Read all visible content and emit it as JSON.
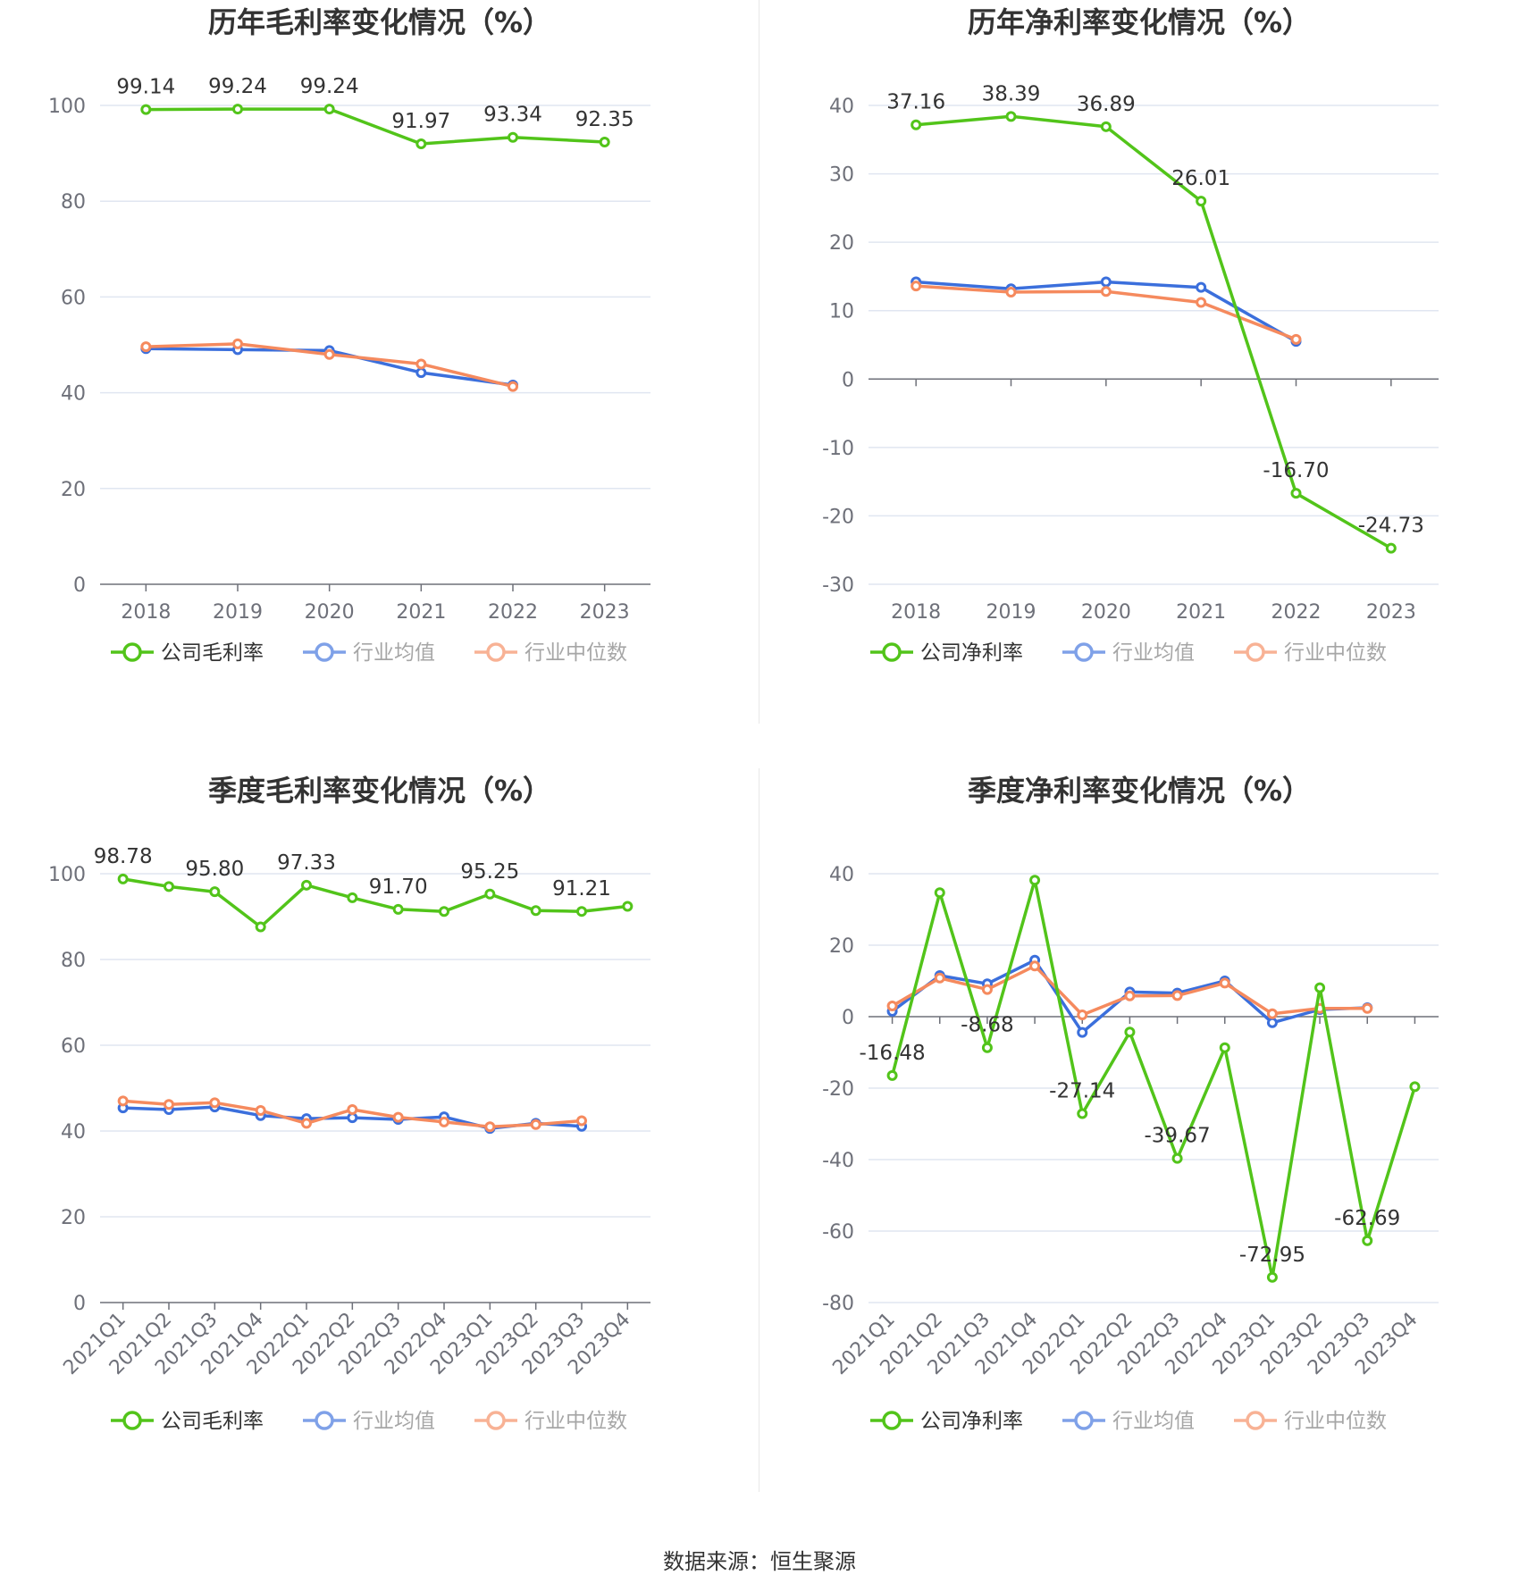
{
  "source": "数据来源：恒生聚源",
  "colors": {
    "company": "#52c41a",
    "avg": "#3b6fdc",
    "median": "#f58a5e",
    "grid": "#e0e6f1",
    "axis": "#6e7079"
  },
  "chart_data": [
    {
      "id": "annual-gross",
      "type": "line",
      "title": "历年毛利率变化情况（%）",
      "categories": [
        "2018",
        "2019",
        "2020",
        "2021",
        "2022",
        "2023"
      ],
      "ylim": [
        0,
        100
      ],
      "yticks": [
        0,
        20,
        40,
        60,
        80,
        100
      ],
      "grid": true,
      "legend": "bottom",
      "series": [
        {
          "name": "公司毛利率",
          "key": "company",
          "values": [
            99.14,
            99.24,
            99.24,
            91.97,
            93.34,
            92.35
          ],
          "labels": [
            "99.14",
            "99.24",
            "99.24",
            "91.97",
            "93.34",
            "92.35"
          ]
        },
        {
          "name": "行业均值",
          "key": "avg",
          "values": [
            49.2,
            49.0,
            48.8,
            44.2,
            41.6,
            null
          ]
        },
        {
          "name": "行业中位数",
          "key": "median",
          "values": [
            49.6,
            50.2,
            48.0,
            46.0,
            41.3,
            null
          ]
        }
      ]
    },
    {
      "id": "annual-net",
      "type": "line",
      "title": "历年净利率变化情况（%）",
      "categories": [
        "2018",
        "2019",
        "2020",
        "2021",
        "2022",
        "2023"
      ],
      "ylim": [
        -30,
        40
      ],
      "yticks": [
        -30,
        -20,
        -10,
        0,
        10,
        20,
        30,
        40
      ],
      "grid": true,
      "legend": "bottom",
      "series": [
        {
          "name": "公司净利率",
          "key": "company",
          "values": [
            37.16,
            38.39,
            36.89,
            26.01,
            -16.7,
            -24.73
          ],
          "labels": [
            "37.16",
            "38.39",
            "36.89",
            "26.01",
            "-16.70",
            "-24.73"
          ]
        },
        {
          "name": "行业均值",
          "key": "avg",
          "values": [
            14.2,
            13.2,
            14.2,
            13.4,
            5.5,
            null
          ]
        },
        {
          "name": "行业中位数",
          "key": "median",
          "values": [
            13.6,
            12.7,
            12.8,
            11.2,
            5.8,
            null
          ]
        }
      ]
    },
    {
      "id": "quarterly-gross",
      "type": "line",
      "title": "季度毛利率变化情况（%）",
      "categories": [
        "2021Q1",
        "2021Q2",
        "2021Q3",
        "2021Q4",
        "2022Q1",
        "2022Q2",
        "2022Q3",
        "2022Q4",
        "2023Q1",
        "2023Q2",
        "2023Q3",
        "2023Q4"
      ],
      "ylim": [
        0,
        100
      ],
      "yticks": [
        0,
        20,
        40,
        60,
        80,
        100
      ],
      "grid": true,
      "legend": "bottom",
      "series": [
        {
          "name": "公司毛利率",
          "key": "company",
          "values": [
            98.78,
            97.0,
            95.8,
            87.6,
            97.33,
            94.4,
            91.7,
            91.2,
            95.25,
            91.4,
            91.21,
            92.4
          ],
          "labels": [
            "98.78",
            null,
            "95.80",
            null,
            "97.33",
            null,
            "91.70",
            null,
            "95.25",
            null,
            "91.21",
            null
          ]
        },
        {
          "name": "行业均值",
          "key": "avg",
          "values": [
            45.4,
            45.0,
            45.6,
            43.6,
            42.9,
            43.1,
            42.7,
            43.3,
            40.6,
            41.8,
            41.1,
            null
          ]
        },
        {
          "name": "行业中位数",
          "key": "median",
          "values": [
            47.0,
            46.2,
            46.6,
            44.8,
            41.8,
            45.0,
            43.2,
            42.1,
            41.0,
            41.5,
            42.4,
            null
          ]
        }
      ]
    },
    {
      "id": "quarterly-net",
      "type": "line",
      "title": "季度净利率变化情况（%）",
      "categories": [
        "2021Q1",
        "2021Q2",
        "2021Q3",
        "2021Q4",
        "2022Q1",
        "2022Q2",
        "2022Q3",
        "2022Q4",
        "2023Q1",
        "2023Q2",
        "2023Q3",
        "2023Q4"
      ],
      "ylim": [
        -80,
        40
      ],
      "yticks": [
        -80,
        -60,
        -40,
        -20,
        0,
        20,
        40
      ],
      "grid": true,
      "legend": "bottom",
      "series": [
        {
          "name": "公司净利率",
          "key": "company",
          "values": [
            -16.48,
            34.7,
            -8.68,
            38.2,
            -27.14,
            -4.3,
            -39.67,
            -8.7,
            -72.95,
            8.1,
            -62.69,
            -19.6
          ],
          "labels": [
            "-16.48",
            null,
            "-8.68",
            null,
            "-27.14",
            null,
            "-39.67",
            null,
            "-72.95",
            null,
            "-62.69",
            null
          ]
        },
        {
          "name": "行业均值",
          "key": "avg",
          "values": [
            1.5,
            11.5,
            9.2,
            15.8,
            -4.4,
            6.9,
            6.6,
            10.0,
            -1.7,
            2.0,
            2.5,
            null
          ]
        },
        {
          "name": "行业中位数",
          "key": "median",
          "values": [
            3.0,
            10.8,
            7.6,
            14.2,
            0.5,
            5.8,
            5.9,
            9.4,
            0.8,
            2.3,
            2.3,
            null
          ]
        }
      ]
    }
  ]
}
